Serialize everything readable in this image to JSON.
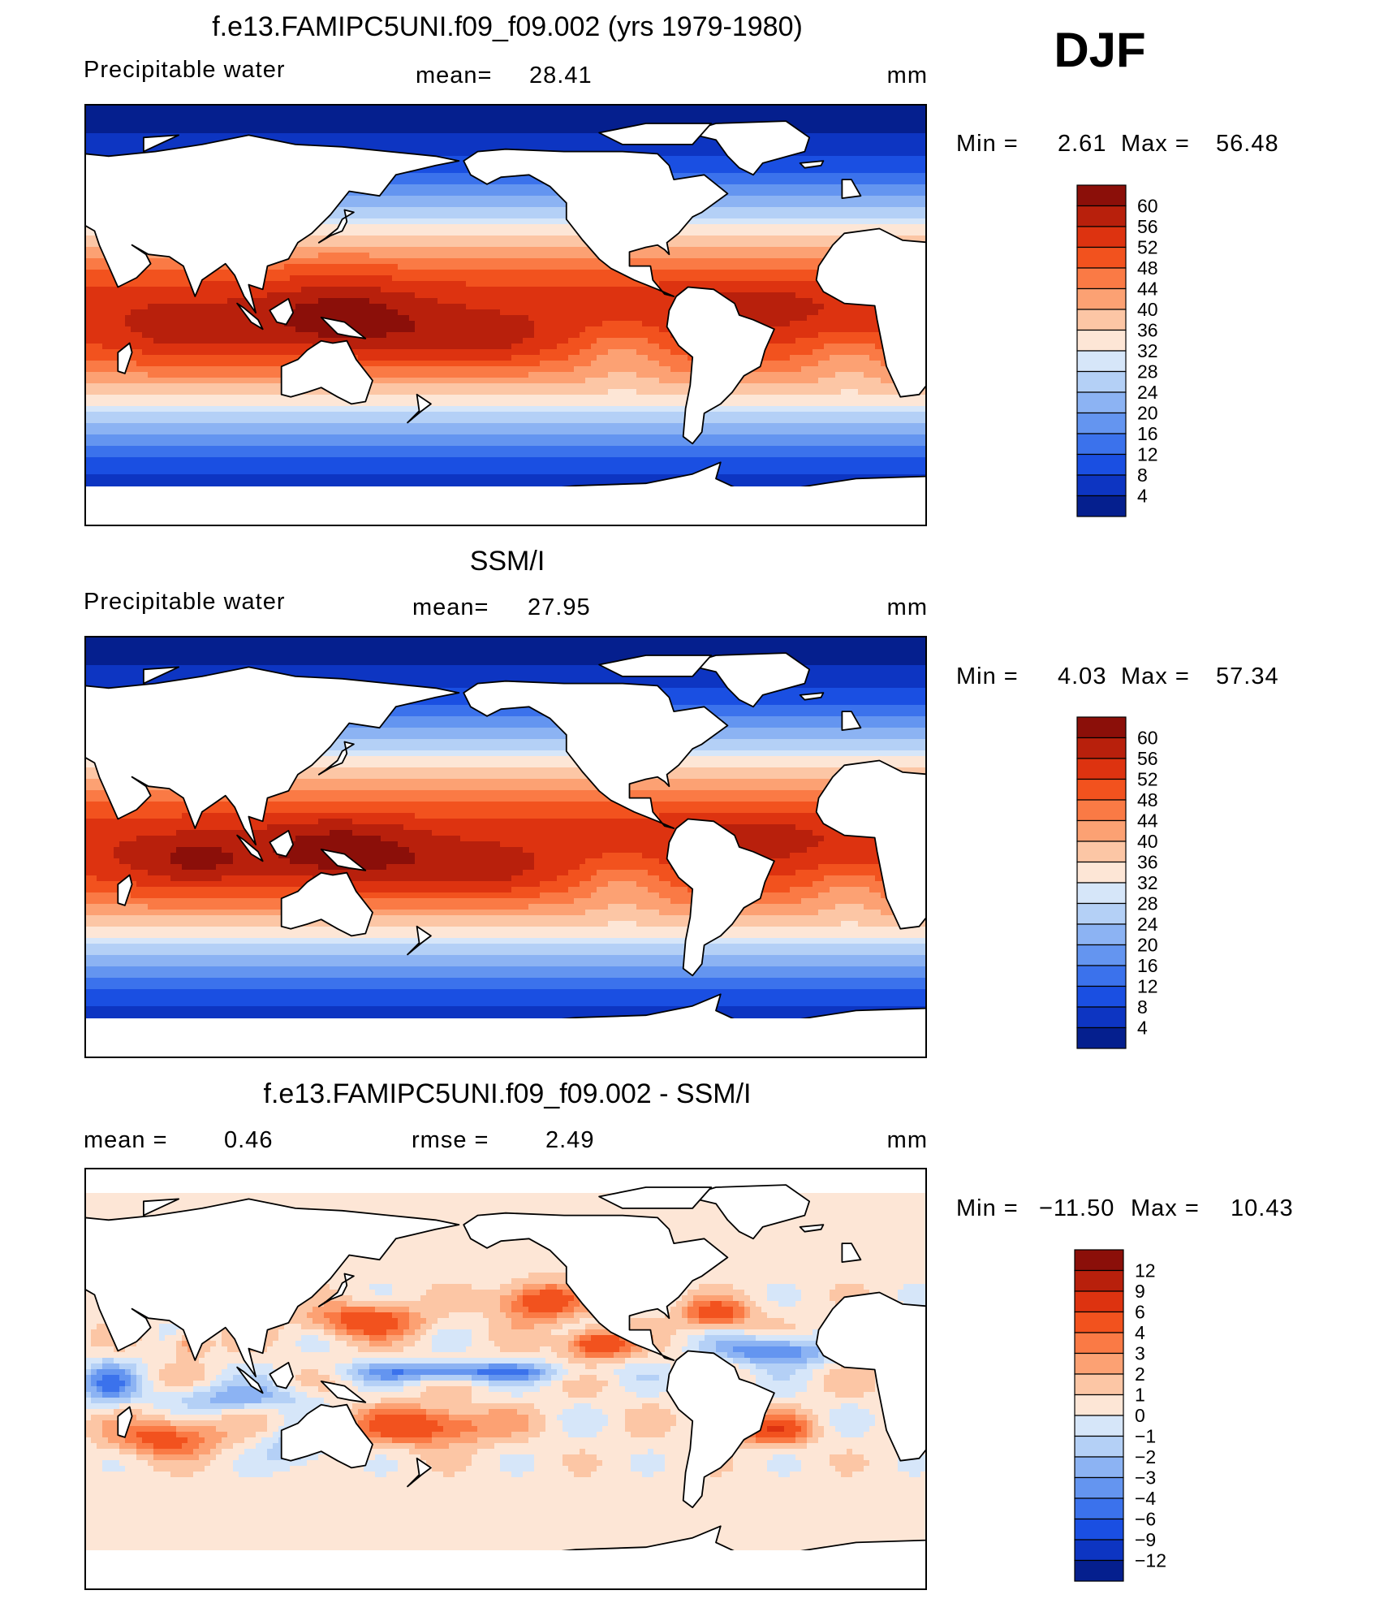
{
  "season": "DJF",
  "chart_data": [
    {
      "type": "heatmap",
      "title": "f.e13.FAMIPC5UNI.f09_f09.002 (yrs 1979-1980)",
      "left_label": "Precipitable  water",
      "stat_label": "mean=",
      "stat_value": "28.41",
      "units": "mm",
      "min_label": "Min  =",
      "min_value": "2.61",
      "max_label": "Max  =",
      "max_value": "56.48",
      "colorbar_levels": [
        "60",
        "56",
        "52",
        "48",
        "44",
        "40",
        "36",
        "32",
        "28",
        "24",
        "20",
        "16",
        "12",
        "8",
        "4"
      ],
      "colorbar_colors": [
        "#8b0f09",
        "#b8200c",
        "#dd3310",
        "#f2521e",
        "#fa7a45",
        "#fca173",
        "#fcc6a5",
        "#fde6d6",
        "#d6e6f9",
        "#b4d0f6",
        "#8cb3f3",
        "#6495f0",
        "#3b72ec",
        "#1a4fe2",
        "#0d35c2",
        "#051f8e"
      ],
      "field": "model"
    },
    {
      "type": "heatmap",
      "title": "SSM/I",
      "left_label": "Precipitable  water",
      "stat_label": "mean=",
      "stat_value": "27.95",
      "units": "mm",
      "min_label": "Min  =",
      "min_value": "4.03",
      "max_label": "Max  =",
      "max_value": "57.34",
      "colorbar_levels": [
        "60",
        "56",
        "52",
        "48",
        "44",
        "40",
        "36",
        "32",
        "28",
        "24",
        "20",
        "16",
        "12",
        "8",
        "4"
      ],
      "colorbar_colors": [
        "#8b0f09",
        "#b8200c",
        "#dd3310",
        "#f2521e",
        "#fa7a45",
        "#fca173",
        "#fcc6a5",
        "#fde6d6",
        "#d6e6f9",
        "#b4d0f6",
        "#8cb3f3",
        "#6495f0",
        "#3b72ec",
        "#1a4fe2",
        "#0d35c2",
        "#051f8e"
      ],
      "field": "obs"
    },
    {
      "type": "heatmap",
      "title": "f.e13.FAMIPC5UNI.f09_f09.002 - SSM/I",
      "left_label": "mean  =",
      "left_value": "0.46",
      "stat_label": "rmse  =",
      "stat_value": "2.49",
      "units": "mm",
      "min_label": "Min  =",
      "min_value": "−11.50",
      "max_label": "Max  =",
      "max_value": "10.43",
      "colorbar_levels": [
        "12",
        "9",
        "6",
        "4",
        "3",
        "2",
        "1",
        "0",
        "−1",
        "−2",
        "−3",
        "−4",
        "−6",
        "−9",
        "−12"
      ],
      "colorbar_colors": [
        "#8b0f09",
        "#b8200c",
        "#dd3310",
        "#f2521e",
        "#fa7a45",
        "#fca173",
        "#fcc6a5",
        "#fde6d6",
        "#d6e6f9",
        "#b4d0f6",
        "#8cb3f3",
        "#6495f0",
        "#3b72ec",
        "#1a4fe2",
        "#0d35c2",
        "#051f8e"
      ],
      "field": "diff"
    }
  ]
}
